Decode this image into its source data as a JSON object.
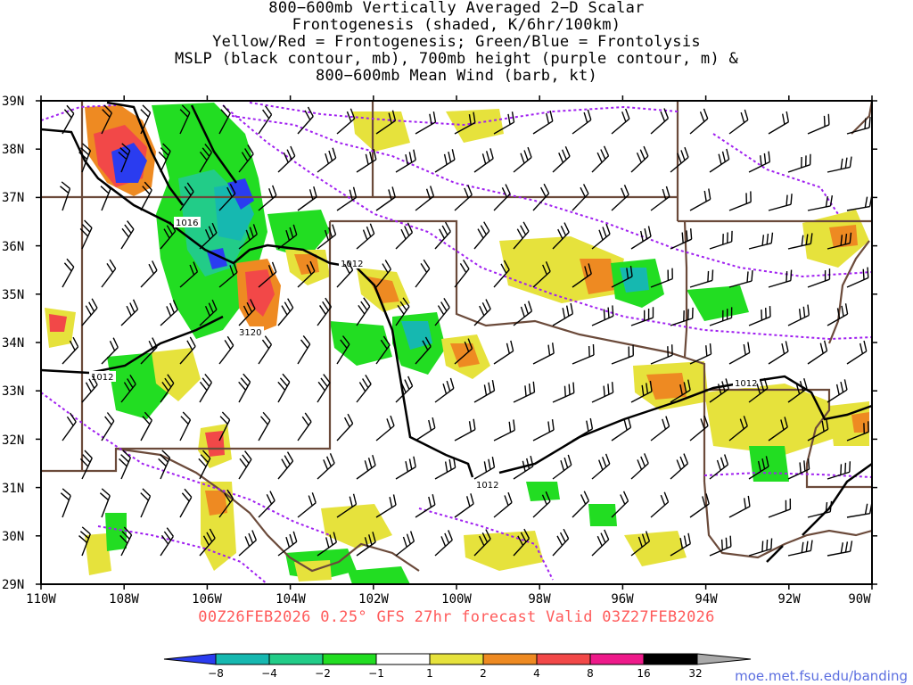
{
  "title": {
    "lines": [
      "800−600mb Vertically Averaged 2−D Scalar",
      "Frontogenesis (shaded, K/6hr/100km)",
      "Yellow/Red = Frontogenesis;  Green/Blue = Frontolysis",
      "MSLP (black contour, mb), 700mb height (purple contour, m) &",
      "800−600mb Mean Wind (barb, kt)"
    ]
  },
  "axes": {
    "lat_labels": [
      "39N",
      "38N",
      "37N",
      "36N",
      "35N",
      "34N",
      "33N",
      "32N",
      "31N",
      "30N",
      "29N"
    ],
    "lon_labels": [
      "110W",
      "108W",
      "106W",
      "104W",
      "102W",
      "100W",
      "98W",
      "96W",
      "94W",
      "92W",
      "90W"
    ]
  },
  "contour_labels": {
    "mslp": [
      "1016",
      "1012",
      "1012",
      "1012",
      "1012"
    ],
    "height": [
      "3120"
    ]
  },
  "valid_line": "00Z26FEB2026 0.25° GFS 27hr forecast Valid 03Z27FEB2026",
  "colorbar": {
    "labels": [
      "−8",
      "−4",
      "−2",
      "−1",
      "1",
      "2",
      "4",
      "8",
      "16",
      "32"
    ],
    "colors": [
      "#2a3cf0",
      "#16b8b0",
      "#22cc88",
      "#22dd22",
      "#ffffff",
      "#e6e23c",
      "#ee8a22",
      "#f24848",
      "#ee1a8a",
      "#000000",
      "#aaaaaa"
    ]
  },
  "colors": {
    "mslp_contour": "#000000",
    "height_contour": "#a020f0",
    "boundaries": "#6b4a3a",
    "valid_text": "#ff5a5a",
    "credit_text": "#5b6ee0"
  },
  "credit": "moe.met.fsu.edu/banding"
}
